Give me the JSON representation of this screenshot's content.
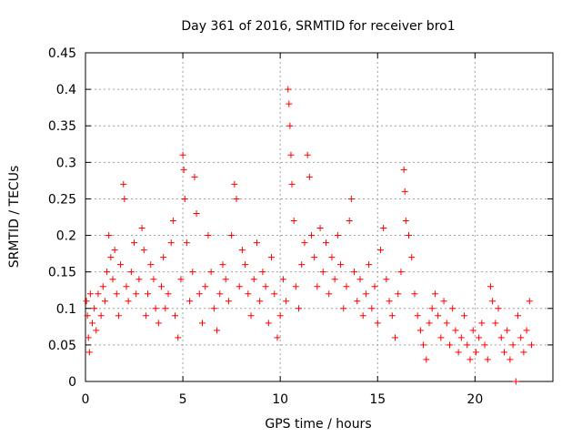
{
  "chart_data": {
    "type": "scatter",
    "title": "Day 361 of 2016, SRMTID for receiver bro1",
    "xlabel": "GPS time / hours",
    "ylabel": "SRMTID / TECUs",
    "xlim": [
      0,
      24
    ],
    "ylim": [
      0,
      0.45
    ],
    "xticks": [
      0,
      5,
      10,
      15,
      20
    ],
    "xtick_labels": [
      "0",
      "5",
      "10",
      "15",
      "20"
    ],
    "yticks": [
      0,
      0.05,
      0.1,
      0.15,
      0.2,
      0.25,
      0.3,
      0.35,
      0.4,
      0.45
    ],
    "ytick_labels": [
      "0",
      "0.05",
      "0.1",
      "0.15",
      "0.2",
      "0.25",
      "0.3",
      "0.35",
      "0.4",
      "0.45"
    ],
    "grid": true,
    "marker": "+",
    "marker_color": "#ff0000",
    "series": [
      {
        "name": "bro1",
        "points": [
          [
            0.05,
            0.11
          ],
          [
            0.1,
            0.09
          ],
          [
            0.15,
            0.06
          ],
          [
            0.2,
            0.04
          ],
          [
            0.25,
            0.12
          ],
          [
            0.35,
            0.08
          ],
          [
            0.45,
            0.1
          ],
          [
            0.55,
            0.07
          ],
          [
            0.65,
            0.12
          ],
          [
            0.8,
            0.09
          ],
          [
            0.9,
            0.13
          ],
          [
            1.0,
            0.11
          ],
          [
            1.1,
            0.15
          ],
          [
            1.2,
            0.2
          ],
          [
            1.3,
            0.17
          ],
          [
            1.4,
            0.14
          ],
          [
            1.5,
            0.18
          ],
          [
            1.6,
            0.12
          ],
          [
            1.7,
            0.09
          ],
          [
            1.8,
            0.16
          ],
          [
            1.95,
            0.27
          ],
          [
            2.0,
            0.25
          ],
          [
            2.1,
            0.13
          ],
          [
            2.2,
            0.11
          ],
          [
            2.35,
            0.15
          ],
          [
            2.5,
            0.19
          ],
          [
            2.6,
            0.12
          ],
          [
            2.75,
            0.14
          ],
          [
            2.9,
            0.21
          ],
          [
            3.0,
            0.18
          ],
          [
            3.1,
            0.09
          ],
          [
            3.2,
            0.12
          ],
          [
            3.35,
            0.16
          ],
          [
            3.5,
            0.14
          ],
          [
            3.6,
            0.1
          ],
          [
            3.75,
            0.08
          ],
          [
            3.9,
            0.13
          ],
          [
            4.0,
            0.17
          ],
          [
            4.1,
            0.1
          ],
          [
            4.25,
            0.12
          ],
          [
            4.4,
            0.19
          ],
          [
            4.5,
            0.22
          ],
          [
            4.6,
            0.09
          ],
          [
            4.75,
            0.06
          ],
          [
            4.9,
            0.14
          ],
          [
            5.0,
            0.31
          ],
          [
            5.05,
            0.29
          ],
          [
            5.1,
            0.25
          ],
          [
            5.2,
            0.19
          ],
          [
            5.35,
            0.11
          ],
          [
            5.5,
            0.15
          ],
          [
            5.6,
            0.28
          ],
          [
            5.7,
            0.23
          ],
          [
            5.85,
            0.12
          ],
          [
            6.0,
            0.08
          ],
          [
            6.15,
            0.13
          ],
          [
            6.3,
            0.2
          ],
          [
            6.45,
            0.15
          ],
          [
            6.6,
            0.1
          ],
          [
            6.75,
            0.07
          ],
          [
            6.9,
            0.12
          ],
          [
            7.05,
            0.16
          ],
          [
            7.2,
            0.14
          ],
          [
            7.35,
            0.11
          ],
          [
            7.5,
            0.2
          ],
          [
            7.65,
            0.27
          ],
          [
            7.75,
            0.25
          ],
          [
            7.9,
            0.13
          ],
          [
            8.05,
            0.18
          ],
          [
            8.2,
            0.16
          ],
          [
            8.35,
            0.12
          ],
          [
            8.5,
            0.09
          ],
          [
            8.65,
            0.14
          ],
          [
            8.8,
            0.19
          ],
          [
            8.95,
            0.11
          ],
          [
            9.1,
            0.15
          ],
          [
            9.25,
            0.13
          ],
          [
            9.4,
            0.08
          ],
          [
            9.55,
            0.17
          ],
          [
            9.7,
            0.12
          ],
          [
            9.85,
            0.06
          ],
          [
            10.0,
            0.09
          ],
          [
            10.15,
            0.14
          ],
          [
            10.3,
            0.11
          ],
          [
            10.4,
            0.4
          ],
          [
            10.45,
            0.38
          ],
          [
            10.5,
            0.35
          ],
          [
            10.55,
            0.31
          ],
          [
            10.6,
            0.27
          ],
          [
            10.7,
            0.22
          ],
          [
            10.8,
            0.13
          ],
          [
            10.95,
            0.1
          ],
          [
            11.1,
            0.16
          ],
          [
            11.25,
            0.19
          ],
          [
            11.4,
            0.31
          ],
          [
            11.5,
            0.28
          ],
          [
            11.6,
            0.2
          ],
          [
            11.75,
            0.17
          ],
          [
            11.9,
            0.13
          ],
          [
            12.05,
            0.21
          ],
          [
            12.2,
            0.15
          ],
          [
            12.35,
            0.19
          ],
          [
            12.5,
            0.12
          ],
          [
            12.65,
            0.17
          ],
          [
            12.8,
            0.14
          ],
          [
            12.95,
            0.2
          ],
          [
            13.1,
            0.16
          ],
          [
            13.25,
            0.1
          ],
          [
            13.4,
            0.13
          ],
          [
            13.55,
            0.22
          ],
          [
            13.65,
            0.25
          ],
          [
            13.8,
            0.15
          ],
          [
            13.95,
            0.11
          ],
          [
            14.1,
            0.14
          ],
          [
            14.25,
            0.09
          ],
          [
            14.4,
            0.12
          ],
          [
            14.55,
            0.16
          ],
          [
            14.7,
            0.1
          ],
          [
            14.85,
            0.13
          ],
          [
            15.0,
            0.08
          ],
          [
            15.15,
            0.18
          ],
          [
            15.3,
            0.21
          ],
          [
            15.45,
            0.14
          ],
          [
            15.6,
            0.11
          ],
          [
            15.75,
            0.09
          ],
          [
            15.9,
            0.06
          ],
          [
            16.05,
            0.12
          ],
          [
            16.2,
            0.15
          ],
          [
            16.35,
            0.29
          ],
          [
            16.4,
            0.26
          ],
          [
            16.45,
            0.22
          ],
          [
            16.6,
            0.2
          ],
          [
            16.75,
            0.17
          ],
          [
            16.9,
            0.12
          ],
          [
            17.05,
            0.09
          ],
          [
            17.2,
            0.07
          ],
          [
            17.35,
            0.05
          ],
          [
            17.5,
            0.03
          ],
          [
            17.65,
            0.08
          ],
          [
            17.8,
            0.1
          ],
          [
            17.95,
            0.12
          ],
          [
            18.1,
            0.09
          ],
          [
            18.25,
            0.06
          ],
          [
            18.4,
            0.11
          ],
          [
            18.55,
            0.08
          ],
          [
            18.7,
            0.05
          ],
          [
            18.85,
            0.1
          ],
          [
            19.0,
            0.07
          ],
          [
            19.15,
            0.04
          ],
          [
            19.3,
            0.06
          ],
          [
            19.45,
            0.09
          ],
          [
            19.6,
            0.05
          ],
          [
            19.75,
            0.03
          ],
          [
            19.9,
            0.07
          ],
          [
            20.05,
            0.04
          ],
          [
            20.2,
            0.06
          ],
          [
            20.35,
            0.08
          ],
          [
            20.5,
            0.05
          ],
          [
            20.65,
            0.03
          ],
          [
            20.8,
            0.13
          ],
          [
            20.9,
            0.11
          ],
          [
            21.05,
            0.08
          ],
          [
            21.2,
            0.1
          ],
          [
            21.35,
            0.06
          ],
          [
            21.5,
            0.04
          ],
          [
            21.65,
            0.07
          ],
          [
            21.8,
            0.03
          ],
          [
            21.95,
            0.05
          ],
          [
            22.1,
            0.0
          ],
          [
            22.2,
            0.09
          ],
          [
            22.35,
            0.06
          ],
          [
            22.5,
            0.04
          ],
          [
            22.65,
            0.07
          ],
          [
            22.8,
            0.11
          ],
          [
            22.9,
            0.05
          ]
        ]
      }
    ]
  }
}
